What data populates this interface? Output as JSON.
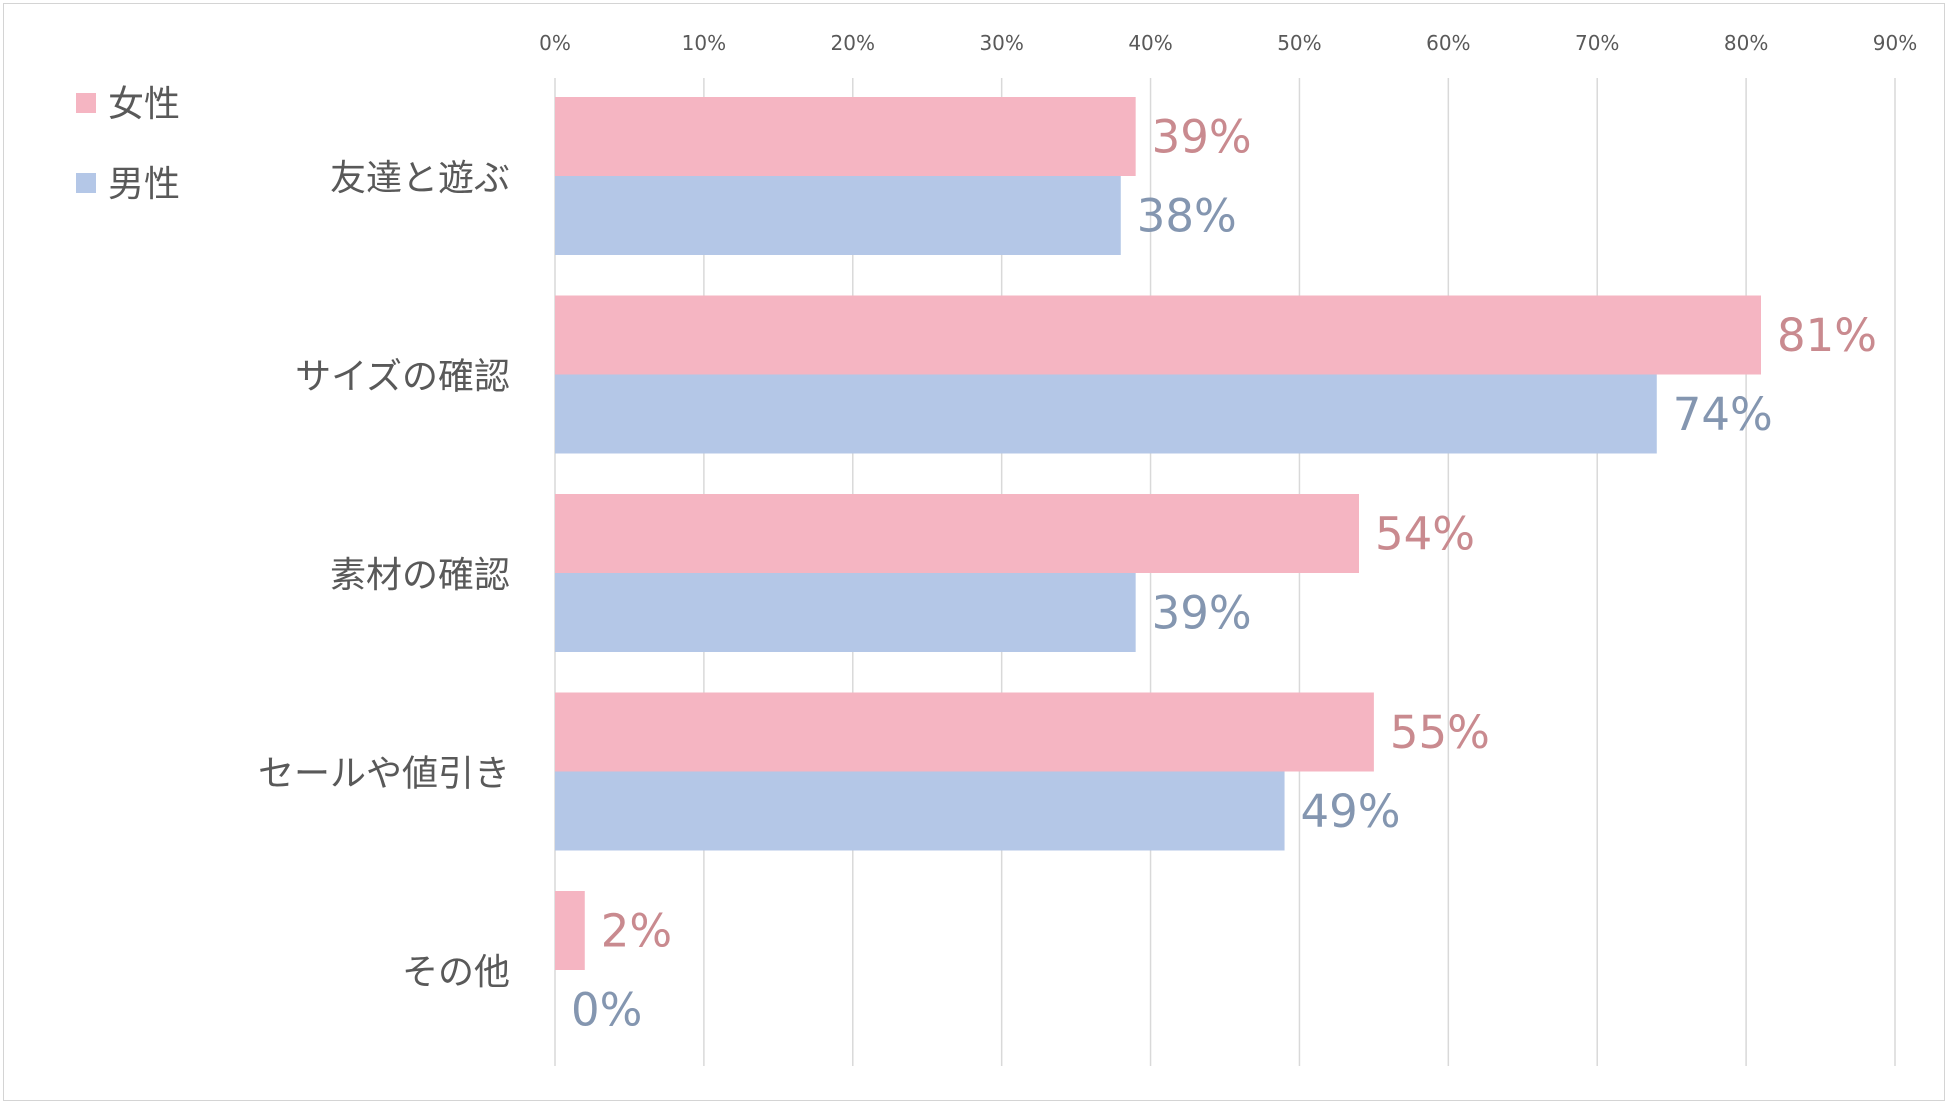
{
  "chart_data": {
    "type": "bar",
    "orientation": "horizontal",
    "categories": [
      "友達と遊ぶ",
      "サイズの確認",
      "素材の確認",
      "セールや値引き",
      "その他"
    ],
    "series": [
      {
        "name": "女性",
        "values": [
          39,
          81,
          54,
          55,
          2
        ],
        "labels": [
          "39%",
          "81%",
          "54%",
          "55%",
          "2%"
        ],
        "color": "#f5b5c2",
        "label_color": "#c98a8f"
      },
      {
        "name": "男性",
        "values": [
          38,
          74,
          39,
          49,
          0
        ],
        "labels": [
          "38%",
          "74%",
          "39%",
          "49%",
          "0%"
        ],
        "color": "#b4c7e7",
        "label_color": "#8496b0"
      }
    ],
    "xlim": [
      0,
      90
    ],
    "x_ticks": [
      0,
      10,
      20,
      30,
      40,
      50,
      60,
      70,
      80,
      90
    ],
    "x_tick_labels": [
      "0%",
      "10%",
      "20%",
      "30%",
      "40%",
      "50%",
      "60%",
      "70%",
      "80%",
      "90%"
    ],
    "x_axis_position": "top",
    "grid": true,
    "gridline_color": "#d9d9d9",
    "legend": "top-left",
    "title": "",
    "xlabel": "",
    "ylabel": ""
  }
}
